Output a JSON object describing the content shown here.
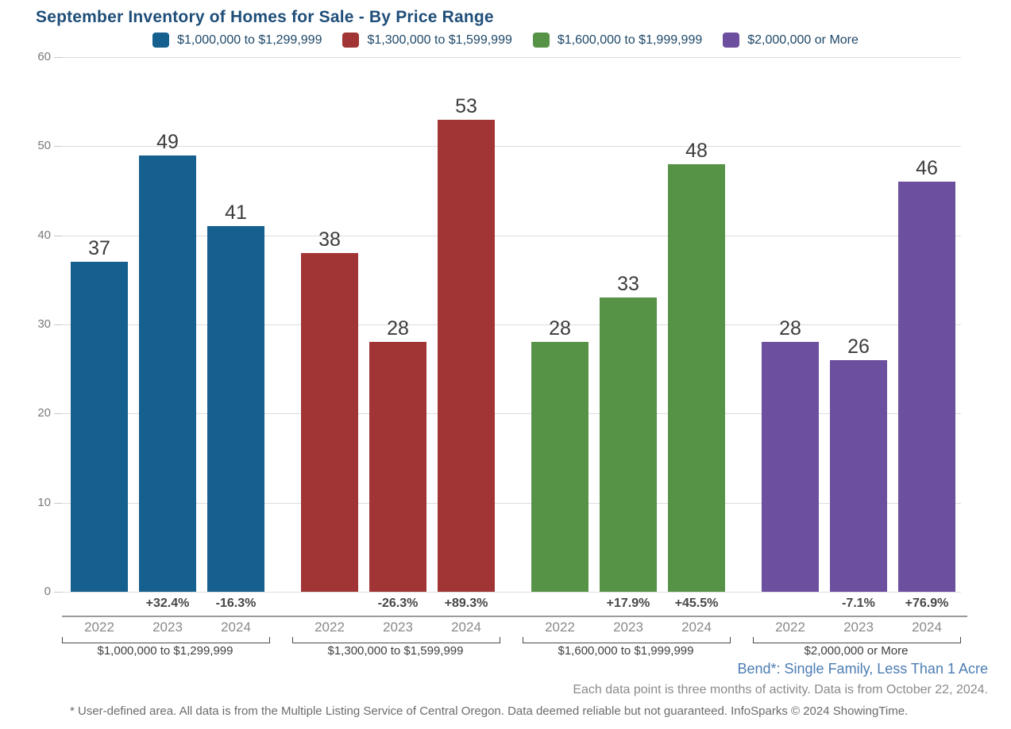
{
  "page": {
    "title": "September Inventory of Homes for Sale - By Price Range",
    "title_color": "#1F4E79"
  },
  "legend": {
    "items": [
      {
        "label": "$1,000,000 to $1,299,999",
        "color": "#15608F"
      },
      {
        "label": "$1,300,000 to $1,599,999",
        "color": "#A13434"
      },
      {
        "label": "$1,600,000 to $1,999,999",
        "color": "#579347"
      },
      {
        "label": "$2,000,000 or More",
        "color": "#6C4F9E"
      }
    ]
  },
  "chart_data": {
    "type": "bar",
    "title": "September Inventory of Homes for Sale - By Price Range",
    "categories": [
      "2022",
      "2023",
      "2024"
    ],
    "groups": [
      {
        "name": "$1,000,000 to $1,299,999",
        "color": "#15608F",
        "values": [
          37,
          49,
          41
        ],
        "pct_change": [
          "",
          "+32.4%",
          "-16.3%"
        ]
      },
      {
        "name": "$1,300,000 to $1,599,999",
        "color": "#A13434",
        "values": [
          38,
          28,
          53
        ],
        "pct_change": [
          "",
          "-26.3%",
          "+89.3%"
        ]
      },
      {
        "name": "$1,600,000 to $1,999,999",
        "color": "#579347",
        "values": [
          28,
          33,
          48
        ],
        "pct_change": [
          "",
          "+17.9%",
          "+45.5%"
        ]
      },
      {
        "name": "$2,000,000 or More",
        "color": "#6C4F9E",
        "values": [
          28,
          26,
          46
        ],
        "pct_change": [
          "",
          "-7.1%",
          "+76.9%"
        ]
      }
    ],
    "xlabel": "",
    "ylabel": "",
    "ylim": [
      0,
      60
    ],
    "yticks": [
      0,
      10,
      20,
      30,
      40,
      50,
      60
    ],
    "grid": true,
    "legend_position": "top"
  },
  "footer": {
    "area_note": "Bend*: Single Family, Less Than 1 Acre",
    "activity_note": "Each data point is three months of activity. Data is from October 22, 2024.",
    "disclaimer": "* User-defined area. All data is from the Multiple Listing Service of Central Oregon. Data deemed reliable but not guaranteed. InfoSparks © 2024 ShowingTime."
  }
}
